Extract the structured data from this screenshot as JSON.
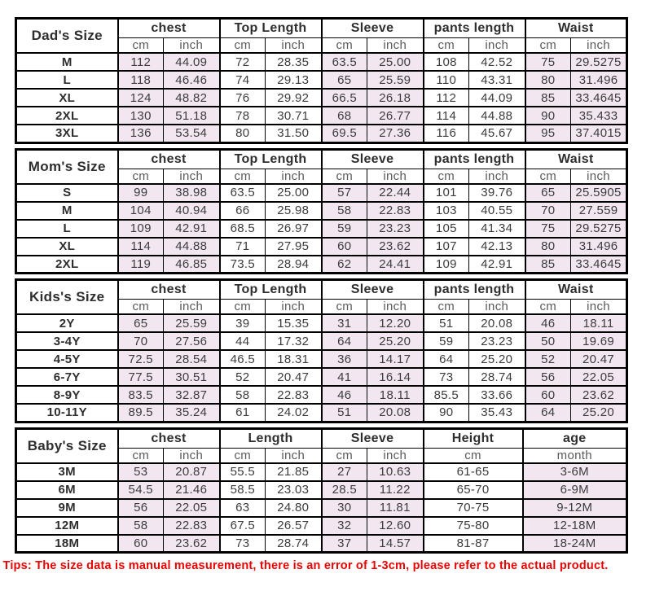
{
  "colors": {
    "shaded_cell": "#F2E7F1",
    "border": "#000000",
    "text": "#3C3C3C",
    "tips_text": "#EE0000",
    "background": "#FFFFFF"
  },
  "tips": "Tips: The size data is manual measurement, there is an error of 1-3cm, please refer to the actual product.",
  "sections": [
    {
      "id": "dads",
      "title": "Dad's Size",
      "title_col_width": 125,
      "groups": [
        {
          "label": "chest",
          "units": [
            "cm",
            "inch"
          ],
          "widths": [
            56,
            69
          ],
          "shaded": true
        },
        {
          "label": "Top Length",
          "units": [
            "cm",
            "inch"
          ],
          "widths": [
            56,
            69
          ],
          "shaded": false
        },
        {
          "label": "Sleeve",
          "units": [
            "cm",
            "inch"
          ],
          "widths": [
            56,
            69
          ],
          "shaded": true
        },
        {
          "label": "pants length",
          "units": [
            "cm",
            "inch"
          ],
          "widths": [
            56,
            69
          ],
          "shaded": false
        },
        {
          "label": "Waist",
          "units": [
            "cm",
            "inch"
          ],
          "widths": [
            56,
            69
          ],
          "shaded": true
        }
      ],
      "rows": [
        {
          "size": "M",
          "values": [
            "112",
            "44.09",
            "72",
            "28.35",
            "63.5",
            "25.00",
            "108",
            "42.52",
            "75",
            "29.5275"
          ]
        },
        {
          "size": "L",
          "values": [
            "118",
            "46.46",
            "74",
            "29.13",
            "65",
            "25.59",
            "110",
            "43.31",
            "80",
            "31.496"
          ]
        },
        {
          "size": "XL",
          "values": [
            "124",
            "48.82",
            "76",
            "29.92",
            "66.5",
            "26.18",
            "112",
            "44.09",
            "85",
            "33.4645"
          ]
        },
        {
          "size": "2XL",
          "values": [
            "130",
            "51.18",
            "78",
            "30.71",
            "68",
            "26.77",
            "114",
            "44.88",
            "90",
            "35.433"
          ]
        },
        {
          "size": "3XL",
          "values": [
            "136",
            "53.54",
            "80",
            "31.50",
            "69.5",
            "27.36",
            "116",
            "45.67",
            "95",
            "37.4015"
          ]
        }
      ]
    },
    {
      "id": "moms",
      "title": "Mom's Size",
      "title_col_width": 125,
      "groups": [
        {
          "label": "chest",
          "units": [
            "cm",
            "inch"
          ],
          "widths": [
            56,
            69
          ],
          "shaded": true
        },
        {
          "label": "Top Length",
          "units": [
            "cm",
            "inch"
          ],
          "widths": [
            56,
            69
          ],
          "shaded": false
        },
        {
          "label": "Sleeve",
          "units": [
            "cm",
            "inch"
          ],
          "widths": [
            56,
            69
          ],
          "shaded": true
        },
        {
          "label": "pants length",
          "units": [
            "cm",
            "inch"
          ],
          "widths": [
            56,
            69
          ],
          "shaded": false
        },
        {
          "label": "Waist",
          "units": [
            "cm",
            "inch"
          ],
          "widths": [
            56,
            69
          ],
          "shaded": true
        }
      ],
      "rows": [
        {
          "size": "S",
          "values": [
            "99",
            "38.98",
            "63.5",
            "25.00",
            "57",
            "22.44",
            "101",
            "39.76",
            "65",
            "25.5905"
          ]
        },
        {
          "size": "M",
          "values": [
            "104",
            "40.94",
            "66",
            "25.98",
            "58",
            "22.83",
            "103",
            "40.55",
            "70",
            "27.559"
          ]
        },
        {
          "size": "L",
          "values": [
            "109",
            "42.91",
            "68.5",
            "26.97",
            "59",
            "23.23",
            "105",
            "41.34",
            "75",
            "29.5275"
          ]
        },
        {
          "size": "XL",
          "values": [
            "114",
            "44.88",
            "71",
            "27.95",
            "60",
            "23.62",
            "107",
            "42.13",
            "80",
            "31.496"
          ]
        },
        {
          "size": "2XL",
          "values": [
            "119",
            "46.85",
            "73.5",
            "28.94",
            "62",
            "24.41",
            "109",
            "42.91",
            "85",
            "33.4645"
          ]
        }
      ]
    },
    {
      "id": "kids",
      "title": "Kids's Size",
      "title_col_width": 125,
      "groups": [
        {
          "label": "chest",
          "units": [
            "cm",
            "inch"
          ],
          "widths": [
            56,
            69
          ],
          "shaded": true
        },
        {
          "label": "Top Length",
          "units": [
            "cm",
            "inch"
          ],
          "widths": [
            56,
            69
          ],
          "shaded": false
        },
        {
          "label": "Sleeve",
          "units": [
            "cm",
            "inch"
          ],
          "widths": [
            56,
            69
          ],
          "shaded": true
        },
        {
          "label": "pants length",
          "units": [
            "cm",
            "inch"
          ],
          "widths": [
            56,
            69
          ],
          "shaded": false
        },
        {
          "label": "Waist",
          "units": [
            "cm",
            "inch"
          ],
          "widths": [
            56,
            69
          ],
          "shaded": true
        }
      ],
      "rows": [
        {
          "size": "2Y",
          "values": [
            "65",
            "25.59",
            "39",
            "15.35",
            "31",
            "12.20",
            "51",
            "20.08",
            "46",
            "18.11"
          ]
        },
        {
          "size": "3-4Y",
          "values": [
            "70",
            "27.56",
            "44",
            "17.32",
            "64",
            "25.20",
            "59",
            "23.23",
            "50",
            "19.69"
          ]
        },
        {
          "size": "4-5Y",
          "values": [
            "72.5",
            "28.54",
            "46.5",
            "18.31",
            "36",
            "14.17",
            "64",
            "25.20",
            "52",
            "20.47"
          ]
        },
        {
          "size": "6-7Y",
          "values": [
            "77.5",
            "30.51",
            "52",
            "20.47",
            "41",
            "16.14",
            "73",
            "28.74",
            "56",
            "22.05"
          ]
        },
        {
          "size": "8-9Y",
          "values": [
            "83.5",
            "32.87",
            "58",
            "22.83",
            "46",
            "18.11",
            "85.5",
            "33.66",
            "60",
            "23.62"
          ]
        },
        {
          "size": "10-11Y",
          "values": [
            "89.5",
            "35.24",
            "61",
            "24.02",
            "51",
            "20.08",
            "90",
            "35.43",
            "64",
            "25.20"
          ]
        }
      ]
    },
    {
      "id": "babys",
      "title": "Baby's Size",
      "title_col_width": 125,
      "groups": [
        {
          "label": "chest",
          "units": [
            "cm",
            "inch"
          ],
          "widths": [
            56,
            69
          ],
          "shaded": true
        },
        {
          "label": "Length",
          "units": [
            "cm",
            "inch"
          ],
          "widths": [
            56,
            69
          ],
          "shaded": false
        },
        {
          "label": "Sleeve",
          "units": [
            "cm",
            "inch"
          ],
          "widths": [
            56,
            69
          ],
          "shaded": true
        },
        {
          "label": "Height",
          "units": [
            "cm"
          ],
          "widths": [
            122
          ],
          "shaded": false
        },
        {
          "label": "age",
          "units": [
            "month"
          ],
          "widths": [
            128
          ],
          "shaded": true
        }
      ],
      "rows": [
        {
          "size": "3M",
          "values": [
            "53",
            "20.87",
            "55.5",
            "21.85",
            "27",
            "10.63",
            "61-65",
            "3-6M"
          ]
        },
        {
          "size": "6M",
          "values": [
            "54.5",
            "21.46",
            "58.5",
            "23.03",
            "28.5",
            "11.22",
            "65-70",
            "6-9M"
          ]
        },
        {
          "size": "9M",
          "values": [
            "56",
            "22.05",
            "63",
            "24.80",
            "30",
            "11.81",
            "70-75",
            "9-12M"
          ]
        },
        {
          "size": "12M",
          "values": [
            "58",
            "22.83",
            "67.5",
            "26.57",
            "32",
            "12.60",
            "75-80",
            "12-18M"
          ]
        },
        {
          "size": "18M",
          "values": [
            "60",
            "23.62",
            "73",
            "28.74",
            "37",
            "14.57",
            "81-87",
            "18-24M"
          ]
        }
      ]
    }
  ]
}
